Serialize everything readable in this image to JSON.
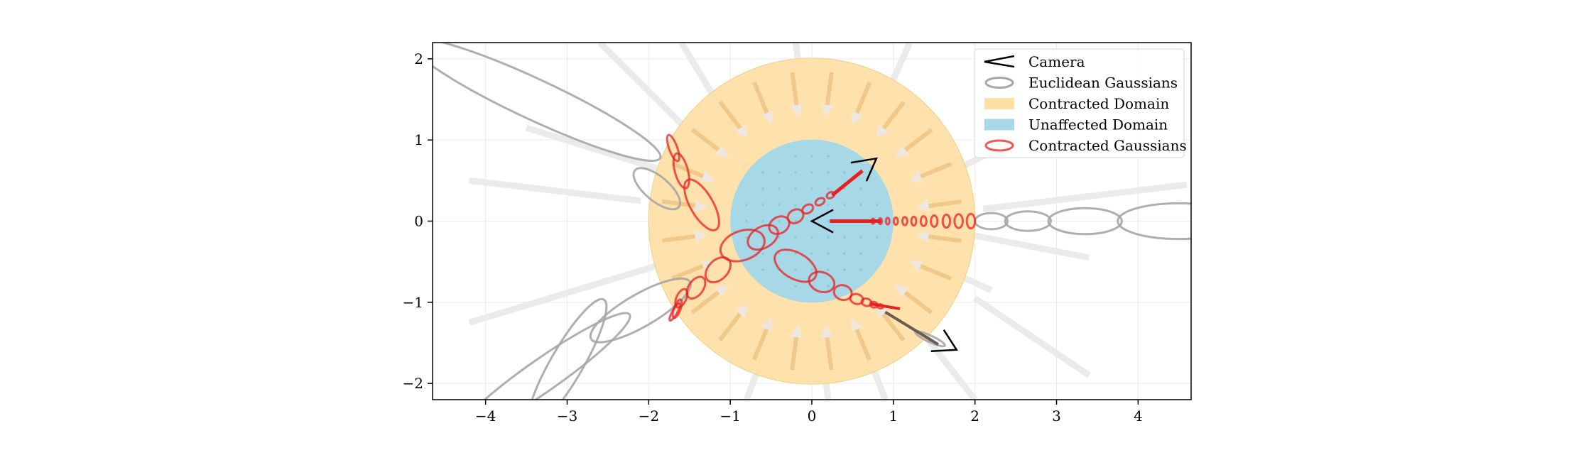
{
  "chart_data": {
    "type": "scatter",
    "title": "",
    "xlabel": "",
    "ylabel": "",
    "xlim": [
      -4.65,
      4.65
    ],
    "ylim": [
      -2.2,
      2.2
    ],
    "xticks": [
      -4,
      -3,
      -2,
      -1,
      0,
      1,
      2,
      3,
      4
    ],
    "yticks": [
      -2,
      -1,
      0,
      1,
      2
    ],
    "xtick_labels": [
      "−4",
      "−3",
      "−2",
      "−1",
      "0",
      "1",
      "2",
      "3",
      "4"
    ],
    "ytick_labels": [
      "−2",
      "−1",
      "0",
      "1",
      "2"
    ],
    "grid": true,
    "legend_position": "top-right",
    "colors": {
      "camera": "#000000",
      "euclidean": "#a6a6a6",
      "contracted_domain": "#ffe0a6",
      "unaffected_domain": "#a6d8e8",
      "contracted_gaussians": "#e82020",
      "arrows": "#e8e2d8"
    },
    "legend": [
      {
        "label": "Camera",
        "kind": "camera"
      },
      {
        "label": "Euclidean Gaussians",
        "kind": "euclidean"
      },
      {
        "label": "Contracted Domain",
        "kind": "contracted-domain"
      },
      {
        "label": "Unaffected Domain",
        "kind": "unaffected-domain"
      },
      {
        "label": "Contracted Gaussians",
        "kind": "contracted-gaussians"
      }
    ],
    "domains": {
      "contracted_radius": 2,
      "unaffected_radius": 1
    },
    "cameras": [
      {
        "x": 0.0,
        "y": 0.0,
        "direction": "left"
      },
      {
        "x": 0.6,
        "y": 0.65,
        "direction": "up-right"
      },
      {
        "x": 1.6,
        "y": -1.55,
        "direction": "down-right"
      }
    ],
    "series": [
      {
        "name": "Euclidean Gaussians",
        "ellipses": [
          {
            "cx": -3.4,
            "cy": 1.5,
            "rx": 1.7,
            "ry": 0.25,
            "angle": -25
          },
          {
            "cx": -1.9,
            "cy": 0.4,
            "rx": 0.35,
            "ry": 0.15,
            "angle": -40
          },
          {
            "cx": -3.3,
            "cy": -1.9,
            "rx": 1.3,
            "ry": 0.2,
            "angle": 35
          },
          {
            "cx": -2.1,
            "cy": -1.1,
            "rx": 0.7,
            "ry": 0.2,
            "angle": 30
          },
          {
            "cx": -3.0,
            "cy": -1.75,
            "rx": 0.9,
            "ry": 0.2,
            "angle": 60
          },
          {
            "cx": 2.2,
            "cy": 0.0,
            "rx": 0.2,
            "ry": 0.1,
            "angle": 0
          },
          {
            "cx": 2.65,
            "cy": 0.0,
            "rx": 0.28,
            "ry": 0.12,
            "angle": 0
          },
          {
            "cx": 3.35,
            "cy": 0.0,
            "rx": 0.45,
            "ry": 0.16,
            "angle": 0
          },
          {
            "cx": 4.5,
            "cy": 0.0,
            "rx": 0.75,
            "ry": 0.22,
            "angle": 0
          },
          {
            "cx": 1.45,
            "cy": -1.45,
            "rx": 0.2,
            "ry": 0.04,
            "angle": -25
          }
        ]
      },
      {
        "name": "Contracted Gaussians",
        "ellipses": [
          {
            "cx": -1.7,
            "cy": 0.9,
            "rx": 0.17,
            "ry": 0.05,
            "angle": -70
          },
          {
            "cx": -1.6,
            "cy": 0.62,
            "rx": 0.22,
            "ry": 0.08,
            "angle": -75
          },
          {
            "cx": -1.35,
            "cy": 0.2,
            "rx": 0.35,
            "ry": 0.14,
            "angle": -60
          },
          {
            "cx": -0.85,
            "cy": -0.3,
            "rx": 0.28,
            "ry": 0.18,
            "angle": 20
          },
          {
            "cx": -0.6,
            "cy": -0.2,
            "rx": 0.2,
            "ry": 0.13,
            "angle": 30
          },
          {
            "cx": -0.4,
            "cy": -0.05,
            "rx": 0.13,
            "ry": 0.1,
            "angle": 30
          },
          {
            "cx": -0.2,
            "cy": 0.06,
            "rx": 0.1,
            "ry": 0.08,
            "angle": 30
          },
          {
            "cx": -0.05,
            "cy": 0.15,
            "rx": 0.07,
            "ry": 0.05,
            "angle": 30
          },
          {
            "cx": 0.1,
            "cy": 0.24,
            "rx": 0.06,
            "ry": 0.04,
            "angle": 30
          },
          {
            "cx": 0.23,
            "cy": 0.32,
            "rx": 0.05,
            "ry": 0.035,
            "angle": 30
          },
          {
            "cx": -1.15,
            "cy": -0.6,
            "rx": 0.18,
            "ry": 0.12,
            "angle": 45
          },
          {
            "cx": -1.42,
            "cy": -0.82,
            "rx": 0.15,
            "ry": 0.09,
            "angle": 55
          },
          {
            "cx": -1.6,
            "cy": -0.95,
            "rx": 0.12,
            "ry": 0.06,
            "angle": 65
          },
          {
            "cx": -1.65,
            "cy": -1.08,
            "rx": 0.12,
            "ry": 0.04,
            "angle": 70
          },
          {
            "cx": -1.68,
            "cy": -1.12,
            "rx": 0.12,
            "ry": 0.03,
            "angle": 60
          },
          {
            "cx": -0.2,
            "cy": -0.55,
            "rx": 0.28,
            "ry": 0.16,
            "angle": -30
          },
          {
            "cx": 0.12,
            "cy": -0.75,
            "rx": 0.16,
            "ry": 0.12,
            "angle": -20
          },
          {
            "cx": 0.38,
            "cy": -0.88,
            "rx": 0.11,
            "ry": 0.09,
            "angle": -15
          },
          {
            "cx": 0.55,
            "cy": -0.96,
            "rx": 0.08,
            "ry": 0.06,
            "angle": -15
          },
          {
            "cx": 0.67,
            "cy": -1.0,
            "rx": 0.06,
            "ry": 0.045,
            "angle": -15
          },
          {
            "cx": 0.76,
            "cy": -1.03,
            "rx": 0.045,
            "ry": 0.035,
            "angle": -15
          },
          {
            "cx": 0.84,
            "cy": -1.05,
            "rx": 0.035,
            "ry": 0.025,
            "angle": -10
          },
          {
            "cx": 1.95,
            "cy": 0.0,
            "rx": 0.05,
            "ry": 0.09,
            "angle": 0
          },
          {
            "cx": 1.8,
            "cy": 0.0,
            "rx": 0.05,
            "ry": 0.085,
            "angle": 0
          },
          {
            "cx": 1.65,
            "cy": 0.0,
            "rx": 0.045,
            "ry": 0.08,
            "angle": 0
          },
          {
            "cx": 1.5,
            "cy": 0.0,
            "rx": 0.04,
            "ry": 0.07,
            "angle": 0
          },
          {
            "cx": 1.37,
            "cy": 0.0,
            "rx": 0.035,
            "ry": 0.06,
            "angle": 0
          },
          {
            "cx": 1.25,
            "cy": 0.0,
            "rx": 0.03,
            "ry": 0.055,
            "angle": 0
          },
          {
            "cx": 1.14,
            "cy": 0.0,
            "rx": 0.03,
            "ry": 0.05,
            "angle": 0
          },
          {
            "cx": 1.03,
            "cy": 0.0,
            "rx": 0.025,
            "ry": 0.045,
            "angle": 0
          },
          {
            "cx": 0.93,
            "cy": 0.0,
            "rx": 0.022,
            "ry": 0.04,
            "angle": 0
          },
          {
            "cx": 0.84,
            "cy": 0.0,
            "rx": 0.02,
            "ry": 0.035,
            "angle": 0
          },
          {
            "cx": 0.75,
            "cy": 0.0,
            "rx": 0.018,
            "ry": 0.03,
            "angle": 0
          }
        ]
      }
    ]
  }
}
